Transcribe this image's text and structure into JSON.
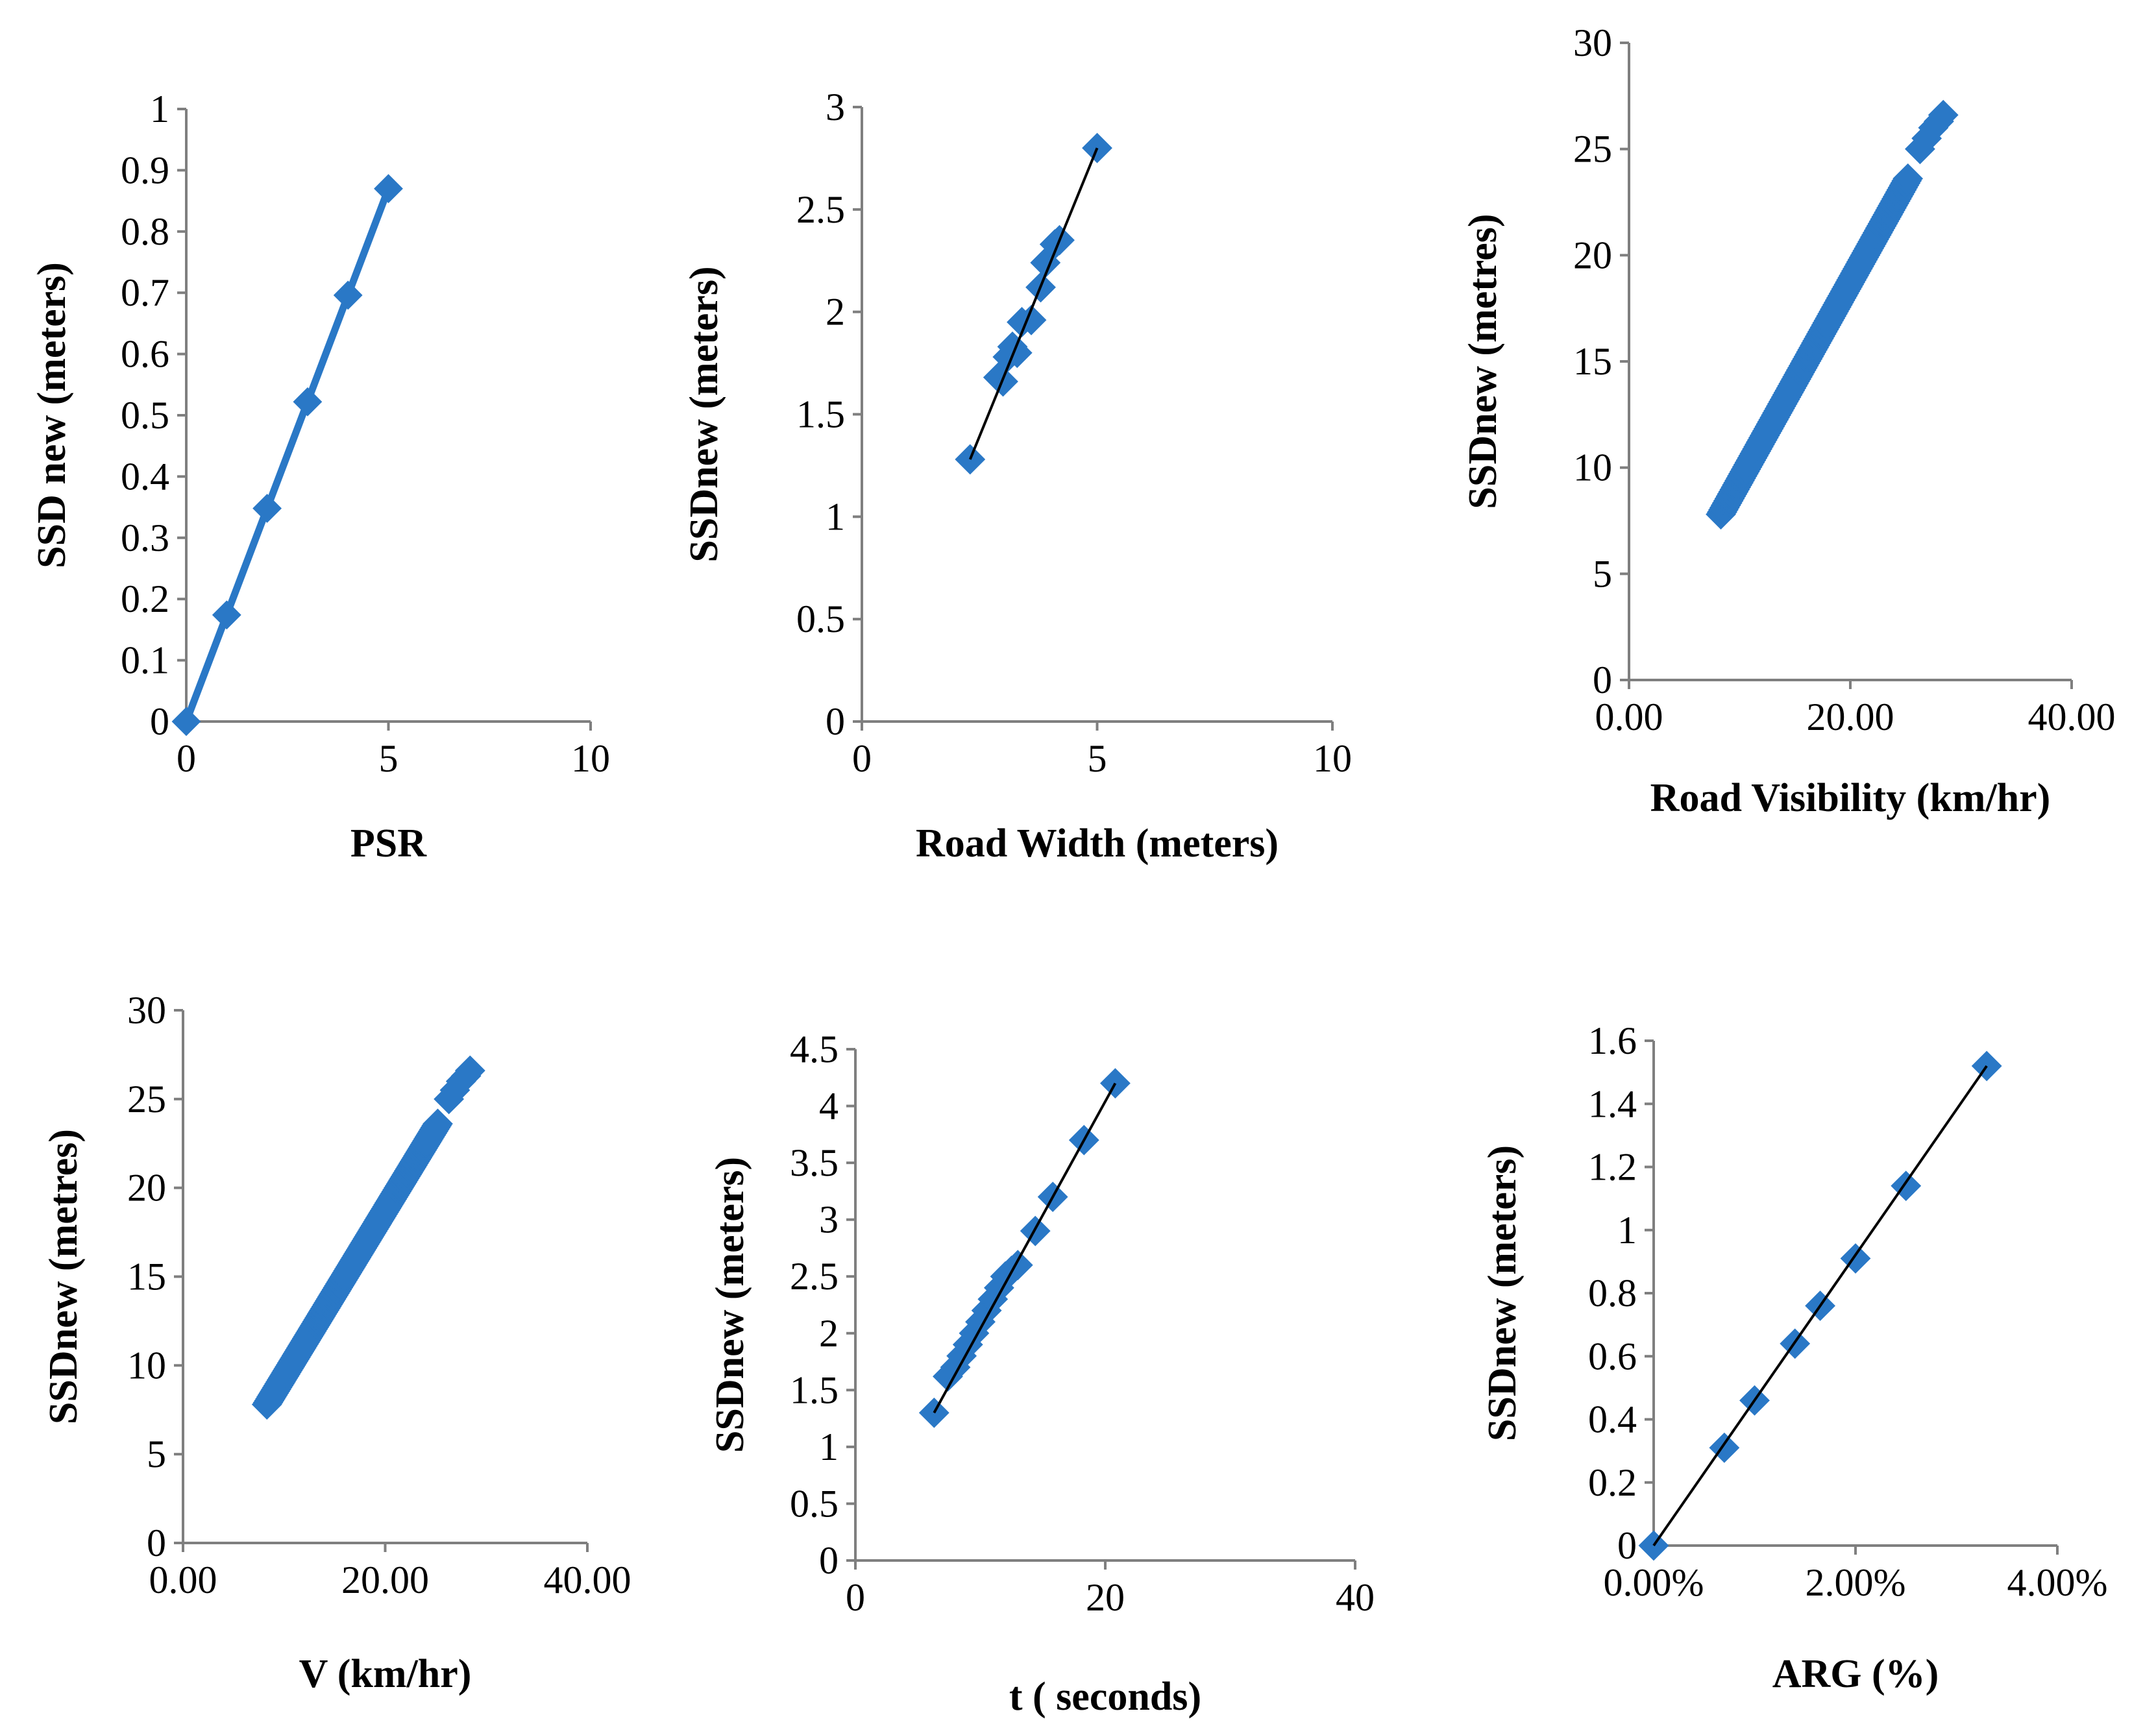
{
  "chart_data": [
    {
      "id": "psr",
      "type": "line",
      "xlabel": "PSR",
      "ylabel": "SSD new (meters)",
      "xlim": [
        0,
        10
      ],
      "ylim": [
        0,
        1
      ],
      "xticks": [
        "0",
        "5",
        "10"
      ],
      "yticks": [
        "0",
        "0.1",
        "0.2",
        "0.3",
        "0.4",
        "0.5",
        "0.6",
        "0.7",
        "0.8",
        "0.9",
        "1"
      ],
      "grid": false,
      "legend": "none",
      "series": [
        {
          "color": "#2a78c6",
          "style": "line+markers",
          "x": [
            0,
            1,
            2,
            3,
            4,
            5
          ],
          "y": [
            0,
            0.174,
            0.348,
            0.522,
            0.696,
            0.87
          ]
        }
      ]
    },
    {
      "id": "road-width",
      "type": "scatter",
      "xlabel": "Road Width (meters)",
      "ylabel": "SSDnew (meters)",
      "xlim": [
        0,
        10
      ],
      "ylim": [
        0,
        3
      ],
      "xticks": [
        "0",
        "5",
        "10"
      ],
      "yticks": [
        "0",
        "0.5",
        "1",
        "1.5",
        "2",
        "2.5",
        "3"
      ],
      "grid": false,
      "legend": "none",
      "trendline": {
        "x": [
          2.3,
          5.0
        ],
        "y": [
          1.28,
          2.8
        ]
      },
      "series": [
        {
          "color": "#2a78c6",
          "style": "markers",
          "x": [
            2.3,
            2.9,
            3.0,
            3.1,
            3.2,
            3.3,
            3.4,
            3.6,
            3.8,
            3.9,
            4.1,
            4.2,
            5.0
          ],
          "y": [
            1.28,
            1.68,
            1.66,
            1.78,
            1.83,
            1.8,
            1.95,
            1.96,
            2.12,
            2.24,
            2.33,
            2.35,
            2.8
          ]
        }
      ]
    },
    {
      "id": "road-visibility",
      "type": "scatter",
      "xlabel": "Road Visibility (km/hr)",
      "ylabel": "SSDnew (metres)",
      "xlim": [
        0,
        40
      ],
      "ylim": [
        0,
        30
      ],
      "xticks": [
        "0.00",
        "20.00",
        "40.00"
      ],
      "yticks": [
        "0",
        "5",
        "10",
        "15",
        "20",
        "25",
        "30"
      ],
      "grid": false,
      "legend": "none",
      "series": [
        {
          "color": "#2a78c6",
          "style": "dense-markers",
          "x_start": 8.3,
          "x_end": 28.4,
          "dense_end": 25.2,
          "count": 150,
          "y_start": 7.8,
          "y_end": 26.6,
          "extra_x": [
            26.3,
            26.9,
            27.5,
            28.0,
            28.4
          ],
          "extra_y": [
            25.0,
            25.5,
            26.0,
            26.3,
            26.6
          ]
        }
      ]
    },
    {
      "id": "speed",
      "type": "scatter",
      "xlabel": "V (km/hr)",
      "ylabel": "SSDnew (metres)",
      "xlim": [
        0,
        40
      ],
      "ylim": [
        0,
        30
      ],
      "xticks": [
        "0.00",
        "20.00",
        "40.00"
      ],
      "yticks": [
        "0",
        "5",
        "10",
        "15",
        "20",
        "25",
        "30"
      ],
      "grid": false,
      "legend": "none",
      "series": [
        {
          "color": "#2a78c6",
          "style": "dense-markers",
          "x_start": 8.3,
          "x_end": 28.4,
          "dense_end": 25.2,
          "count": 150,
          "y_start": 7.8,
          "y_end": 26.6,
          "extra_x": [
            26.3,
            26.9,
            27.5,
            28.0,
            28.4
          ],
          "extra_y": [
            25.0,
            25.5,
            26.0,
            26.3,
            26.6
          ]
        }
      ]
    },
    {
      "id": "reaction-time",
      "type": "scatter",
      "xlabel": "t ( seconds)",
      "ylabel": "SSDnew (meters)",
      "xlim": [
        0,
        40
      ],
      "ylim": [
        0,
        4.5
      ],
      "xticks": [
        "0",
        "20",
        "40"
      ],
      "yticks": [
        "0",
        "0.5",
        "1",
        "1.5",
        "2",
        "2.5",
        "3",
        "3.5",
        "4",
        "4.5"
      ],
      "grid": false,
      "legend": "none",
      "trendline": {
        "x": [
          6.3,
          20.8
        ],
        "y": [
          1.3,
          4.2
        ]
      },
      "series": [
        {
          "color": "#2a78c6",
          "style": "markers",
          "x": [
            6.3,
            7.4,
            8.0,
            8.5,
            9.0,
            9.5,
            10.0,
            10.5,
            11.0,
            11.5,
            12.0,
            12.5,
            13.0,
            14.4,
            15.8,
            18.3,
            20.8
          ],
          "y": [
            1.3,
            1.62,
            1.7,
            1.8,
            1.9,
            2.0,
            2.1,
            2.2,
            2.3,
            2.4,
            2.5,
            2.55,
            2.6,
            2.9,
            3.2,
            3.7,
            4.2
          ]
        }
      ]
    },
    {
      "id": "arg",
      "type": "scatter",
      "xlabel": "ARG (%)",
      "ylabel": "SSDnew (meters)",
      "xlim": [
        0,
        0.04
      ],
      "ylim": [
        0,
        1.6
      ],
      "xticks": [
        "0.00%",
        "2.00%",
        "4.00%"
      ],
      "yticks": [
        "0",
        "0.2",
        "0.4",
        "0.6",
        "0.8",
        "1",
        "1.2",
        "1.4",
        "1.6"
      ],
      "grid": false,
      "legend": "none",
      "trendline": {
        "x": [
          0.0,
          0.033
        ],
        "y": [
          0.0,
          1.52
        ]
      },
      "series": [
        {
          "color": "#2a78c6",
          "style": "markers",
          "x": [
            0.0,
            0.007,
            0.01,
            0.014,
            0.0165,
            0.02,
            0.025,
            0.033
          ],
          "y": [
            0.0,
            0.31,
            0.46,
            0.64,
            0.76,
            0.91,
            1.14,
            1.52
          ]
        }
      ]
    }
  ]
}
